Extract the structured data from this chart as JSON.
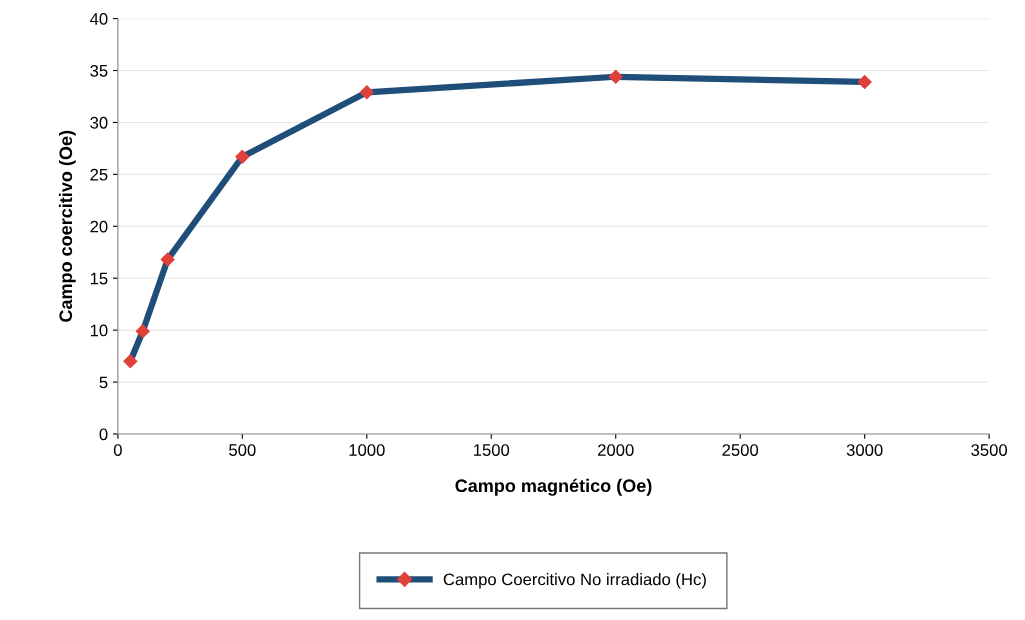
{
  "chart_data": {
    "type": "line",
    "xlabel": "Campo magnético (Oe)",
    "ylabel": "Campo coercitivo (Oe)",
    "x": [
      50,
      100,
      200,
      500,
      1000,
      2000,
      3000
    ],
    "series": [
      {
        "name": "Campo Coercitivo No irradiado (Hc)",
        "color": "#1f4e79",
        "colors": [
          "#e0403a",
          "#e0403a",
          "#e0403a",
          "#e0403a",
          "#e0403a",
          "#e0403a",
          "#e0403a"
        ],
        "values": [
          7,
          9.9,
          16.8,
          26.7,
          32.9,
          34.4,
          33.9
        ]
      }
    ],
    "xlim": [
      0,
      3500
    ],
    "xticks": [
      0,
      500,
      1000,
      1500,
      2000,
      2500,
      3000,
      3500
    ],
    "ylim": [
      0,
      40
    ],
    "yticks": [
      0,
      5,
      10,
      15,
      20,
      25,
      30,
      35,
      40
    ],
    "grid": "y",
    "legend": "bottom",
    "marker": "diamond",
    "line_style": "solid"
  }
}
